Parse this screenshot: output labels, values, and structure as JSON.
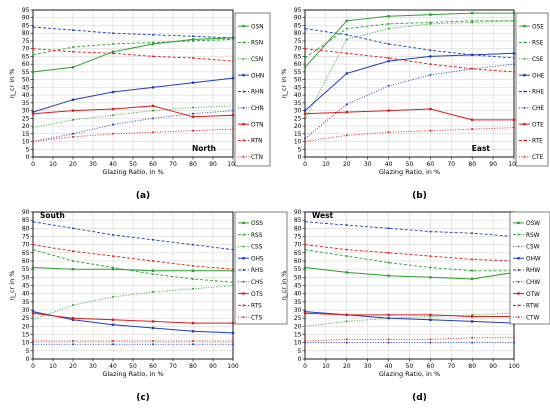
{
  "chart_data": [
    {
      "type": "line",
      "panel_label": "(a)",
      "orientation_label": "North",
      "ylabel": "η_cr in %",
      "xlabel": "Glazing Ratio, in %",
      "xlim": [
        0,
        100
      ],
      "ylim": [
        0,
        95
      ],
      "xticks": [
        0,
        10,
        20,
        30,
        40,
        50,
        60,
        70,
        80,
        90,
        100
      ],
      "yticks": [
        0,
        5,
        10,
        15,
        20,
        25,
        30,
        35,
        40,
        45,
        50,
        55,
        60,
        65,
        70,
        75,
        80,
        85,
        90,
        95
      ],
      "legend_position": "right",
      "x": [
        0,
        20,
        40,
        60,
        80,
        100
      ],
      "series": [
        {
          "name": "OSN",
          "color": "#2ca02c",
          "dash": "solid",
          "values": [
            55,
            58,
            68,
            73,
            76,
            77
          ]
        },
        {
          "name": "RSN",
          "color": "#2ca02c",
          "dash": "dashed",
          "values": [
            66,
            71,
            73,
            74,
            75,
            76
          ]
        },
        {
          "name": "CSN",
          "color": "#2ca02c",
          "dash": "dotted",
          "values": [
            19,
            24,
            27,
            30,
            32,
            33
          ]
        },
        {
          "name": "OHN",
          "color": "#1f3fbf",
          "dash": "solid",
          "values": [
            29,
            37,
            42,
            45,
            48,
            51
          ]
        },
        {
          "name": "RHN",
          "color": "#1f3fbf",
          "dash": "dashed",
          "values": [
            84,
            82,
            80,
            79,
            78,
            77
          ]
        },
        {
          "name": "CHN",
          "color": "#1f3fbf",
          "dash": "dotted",
          "values": [
            10,
            15,
            21,
            25,
            28,
            30
          ]
        },
        {
          "name": "OTN",
          "color": "#e31a1c",
          "dash": "solid",
          "values": [
            28,
            30,
            31,
            33,
            26,
            27
          ]
        },
        {
          "name": "RTN",
          "color": "#e31a1c",
          "dash": "dashed",
          "values": [
            70,
            68,
            67,
            65,
            64,
            62
          ]
        },
        {
          "name": "CTN",
          "color": "#e31a1c",
          "dash": "dotted",
          "values": [
            10,
            13,
            15,
            16,
            17,
            18
          ]
        }
      ]
    },
    {
      "type": "line",
      "panel_label": "(b)",
      "orientation_label": "East",
      "ylabel": "η_cr in %",
      "xlabel": "Glazing Ratio, in %",
      "xlim": [
        0,
        100
      ],
      "ylim": [
        0,
        95
      ],
      "xticks": [
        0,
        10,
        20,
        30,
        40,
        50,
        60,
        70,
        80,
        90,
        100
      ],
      "yticks": [
        0,
        5,
        10,
        15,
        20,
        25,
        30,
        35,
        40,
        45,
        50,
        55,
        60,
        65,
        70,
        75,
        80,
        85,
        90,
        95
      ],
      "legend_position": "right",
      "x": [
        0,
        20,
        40,
        60,
        80,
        100
      ],
      "series": [
        {
          "name": "OSE",
          "color": "#2ca02c",
          "dash": "solid",
          "values": [
            58,
            88,
            91,
            92,
            93,
            93
          ]
        },
        {
          "name": "RSE",
          "color": "#2ca02c",
          "dash": "dashed",
          "values": [
            64,
            83,
            86,
            87,
            88,
            88
          ]
        },
        {
          "name": "CSE",
          "color": "#2ca02c",
          "dash": "dotted",
          "values": [
            24,
            76,
            83,
            86,
            87,
            88
          ]
        },
        {
          "name": "OHE",
          "color": "#1f3fbf",
          "dash": "solid",
          "values": [
            30,
            54,
            62,
            65,
            66,
            67
          ]
        },
        {
          "name": "RHE",
          "color": "#1f3fbf",
          "dash": "dashed",
          "values": [
            83,
            79,
            73,
            69,
            66,
            64
          ]
        },
        {
          "name": "CHE",
          "color": "#1f3fbf",
          "dash": "dotted",
          "values": [
            12,
            34,
            46,
            53,
            57,
            60
          ]
        },
        {
          "name": "OTE",
          "color": "#e31a1c",
          "dash": "solid",
          "values": [
            28,
            29,
            30,
            31,
            24,
            24
          ]
        },
        {
          "name": "RTE",
          "color": "#e31a1c",
          "dash": "dashed",
          "values": [
            70,
            67,
            64,
            60,
            57,
            55
          ]
        },
        {
          "name": "CTE",
          "color": "#e31a1c",
          "dash": "dotted",
          "values": [
            10,
            14,
            16,
            17,
            18,
            19
          ]
        }
      ]
    },
    {
      "type": "line",
      "panel_label": "(c)",
      "orientation_label": "South",
      "ylabel": "η_cr in %",
      "xlabel": "Glazing Ratio, in %",
      "xlim": [
        0,
        100
      ],
      "ylim": [
        0,
        90
      ],
      "xticks": [
        0,
        10,
        20,
        30,
        40,
        50,
        60,
        70,
        80,
        90,
        100
      ],
      "yticks": [
        0,
        5,
        10,
        15,
        20,
        25,
        30,
        35,
        40,
        45,
        50,
        55,
        60,
        65,
        70,
        75,
        80,
        85,
        90
      ],
      "legend_position": "right",
      "x": [
        0,
        20,
        40,
        60,
        80,
        100
      ],
      "series": [
        {
          "name": "OSS",
          "color": "#2ca02c",
          "dash": "solid",
          "values": [
            56,
            55,
            55,
            54,
            54,
            54
          ]
        },
        {
          "name": "RSS",
          "color": "#2ca02c",
          "dash": "dashed",
          "values": [
            67,
            60,
            56,
            52,
            49,
            47
          ]
        },
        {
          "name": "CSS",
          "color": "#2ca02c",
          "dash": "dotted",
          "values": [
            24,
            33,
            38,
            41,
            43,
            45
          ]
        },
        {
          "name": "OHS",
          "color": "#1f3fbf",
          "dash": "solid",
          "values": [
            29,
            24,
            21,
            19,
            17,
            16
          ]
        },
        {
          "name": "RHS",
          "color": "#1f3fbf",
          "dash": "dashed",
          "values": [
            84,
            80,
            76,
            73,
            70,
            67
          ]
        },
        {
          "name": "CHS",
          "color": "#1f3fbf",
          "dash": "dotted",
          "values": [
            9,
            9,
            9,
            9,
            9,
            9
          ]
        },
        {
          "name": "OTS",
          "color": "#e31a1c",
          "dash": "solid",
          "values": [
            28,
            25,
            24,
            23,
            22,
            22
          ]
        },
        {
          "name": "RTS",
          "color": "#e31a1c",
          "dash": "dashed",
          "values": [
            70,
            66,
            63,
            60,
            57,
            55
          ]
        },
        {
          "name": "CTS",
          "color": "#e31a1c",
          "dash": "dotted",
          "values": [
            11,
            11,
            11,
            11,
            11,
            11
          ]
        }
      ]
    },
    {
      "type": "line",
      "panel_label": "(d)",
      "orientation_label": "West",
      "ylabel": "η_cr in %",
      "xlabel": "Glazing Ratio, in %",
      "xlim": [
        0,
        100
      ],
      "ylim": [
        0,
        90
      ],
      "xticks": [
        0,
        10,
        20,
        30,
        40,
        50,
        60,
        70,
        80,
        90,
        100
      ],
      "yticks": [
        0,
        5,
        10,
        15,
        20,
        25,
        30,
        35,
        40,
        45,
        50,
        55,
        60,
        65,
        70,
        75,
        80,
        85,
        90
      ],
      "legend_position": "right",
      "x": [
        0,
        20,
        40,
        60,
        80,
        100
      ],
      "series": [
        {
          "name": "OSW",
          "color": "#2ca02c",
          "dash": "solid",
          "values": [
            56,
            53,
            51,
            50,
            49,
            53
          ]
        },
        {
          "name": "RSW",
          "color": "#2ca02c",
          "dash": "dashed",
          "values": [
            67,
            63,
            59,
            56,
            54,
            54
          ]
        },
        {
          "name": "CSW",
          "color": "#2ca02c",
          "dash": "dotted",
          "values": [
            20,
            23,
            25,
            26,
            27,
            28
          ]
        },
        {
          "name": "OHW",
          "color": "#1f3fbf",
          "dash": "solid",
          "values": [
            29,
            27,
            25,
            24,
            23,
            22
          ]
        },
        {
          "name": "RHW",
          "color": "#1f3fbf",
          "dash": "dashed",
          "values": [
            84,
            82,
            80,
            78,
            77,
            75
          ]
        },
        {
          "name": "CHW",
          "color": "#1f3fbf",
          "dash": "dotted",
          "values": [
            10,
            10,
            10,
            10,
            10,
            10
          ]
        },
        {
          "name": "OTW",
          "color": "#e31a1c",
          "dash": "solid",
          "values": [
            28,
            27,
            27,
            27,
            26,
            26
          ]
        },
        {
          "name": "RTW",
          "color": "#e31a1c",
          "dash": "dashed",
          "values": [
            70,
            67,
            65,
            63,
            61,
            60
          ]
        },
        {
          "name": "CTW",
          "color": "#e31a1c",
          "dash": "dotted",
          "values": [
            11,
            12,
            12,
            12,
            13,
            13
          ]
        }
      ]
    }
  ]
}
